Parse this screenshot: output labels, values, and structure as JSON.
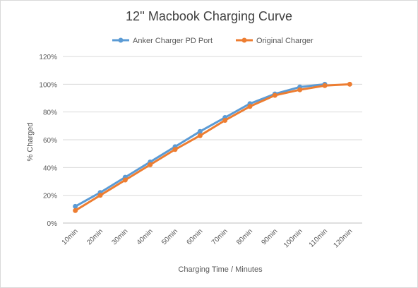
{
  "chart_data": {
    "type": "line",
    "title": "12'' Macbook Charging Curve",
    "xlabel": "Charging Time / Minutes",
    "ylabel": "% Charged",
    "categories": [
      "10min",
      "20min",
      "30min",
      "40min",
      "50min",
      "60min",
      "70min",
      "80min",
      "90min",
      "100min",
      "110min",
      "120min"
    ],
    "ylim": [
      0,
      1.2
    ],
    "yticks": [
      0,
      0.2,
      0.4,
      0.6,
      0.8,
      1.0,
      1.2
    ],
    "ytick_labels": [
      "0%",
      "20%",
      "40%",
      "60%",
      "80%",
      "100%",
      "120%"
    ],
    "grid": true,
    "legend_position": "top",
    "series": [
      {
        "name": "Anker Charger PD Port",
        "color": "#5b9bd5",
        "values": [
          0.12,
          0.22,
          0.33,
          0.44,
          0.55,
          0.66,
          0.76,
          0.86,
          0.93,
          0.98,
          1.0,
          null
        ]
      },
      {
        "name": "Original Charger",
        "color": "#ed7d31",
        "values": [
          0.09,
          0.2,
          0.31,
          0.42,
          0.53,
          0.63,
          0.74,
          0.84,
          0.92,
          0.96,
          0.99,
          1.0
        ]
      }
    ]
  }
}
